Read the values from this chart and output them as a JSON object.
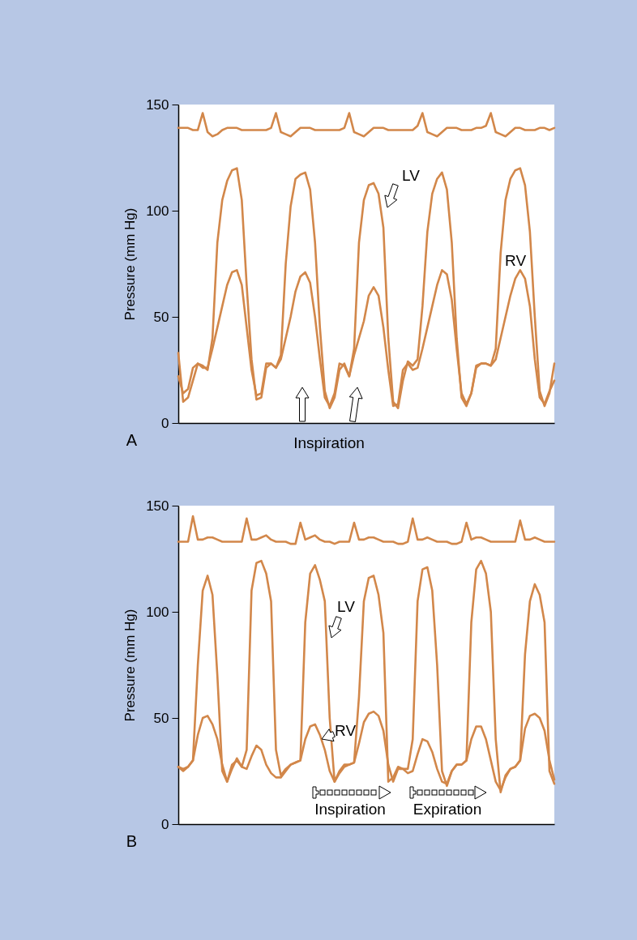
{
  "chart_data": [
    {
      "type": "line",
      "title": "A",
      "ylabel": "Pressure (mm Hg)",
      "ylim": [
        0,
        150
      ],
      "yticks": [
        0,
        50,
        100,
        150
      ],
      "tick_labels": "y",
      "categories": [
        null,
        null,
        null,
        null,
        null,
        null,
        null,
        null,
        null,
        null,
        null,
        null,
        null,
        null,
        null,
        null,
        null,
        null,
        null,
        null,
        null,
        null,
        null,
        null,
        null,
        null,
        null,
        null,
        null,
        null,
        null,
        null,
        null,
        null,
        null,
        null,
        null,
        null,
        null,
        null,
        null,
        null,
        null,
        null,
        null,
        null,
        null,
        null,
        null,
        null,
        null,
        null,
        null,
        null,
        null,
        null,
        null,
        null,
        null,
        null,
        null,
        null,
        null,
        null,
        null,
        null,
        null,
        null,
        null,
        null,
        null,
        null,
        null,
        null,
        null,
        null,
        null,
        null
      ],
      "series": [
        {
          "color": "#d2874a",
          "values": [
            139,
            139,
            139,
            138,
            138,
            146,
            137,
            135,
            136,
            138,
            139,
            139,
            139,
            138,
            138,
            138,
            138,
            138,
            138,
            139,
            146,
            137,
            136,
            135,
            137,
            139,
            139,
            139,
            138,
            138,
            138,
            138,
            138,
            138,
            139,
            146,
            137,
            136,
            135,
            137,
            139,
            139,
            139,
            138,
            138,
            138,
            138,
            138,
            138,
            140,
            146,
            137,
            136,
            135,
            137,
            139,
            139,
            139,
            138,
            138,
            138,
            139,
            139,
            140,
            146,
            137,
            136,
            135,
            137,
            139,
            139,
            138,
            138,
            138,
            139,
            139,
            138,
            139
          ]
        },
        {
          "name": "LV",
          "color": "#d2874a",
          "values": [
            33,
            10,
            12,
            20,
            28,
            27,
            25,
            40,
            85,
            105,
            114,
            119,
            120,
            105,
            65,
            30,
            11,
            12,
            26,
            28,
            26,
            32,
            75,
            102,
            115,
            117,
            118,
            110,
            85,
            45,
            15,
            7,
            12,
            25,
            28,
            22,
            35,
            85,
            105,
            112,
            113,
            108,
            92,
            40,
            10,
            7,
            20,
            29,
            27,
            30,
            55,
            90,
            108,
            115,
            118,
            110,
            85,
            40,
            12,
            8,
            14,
            26,
            28,
            28,
            27,
            35,
            80,
            105,
            115,
            119,
            120,
            112,
            90,
            50,
            15,
            8,
            14,
            28
          ]
        },
        {
          "name": "RV",
          "color": "#d2874a",
          "values": [
            22,
            14,
            16,
            26,
            28,
            26,
            26,
            35,
            45,
            55,
            65,
            71,
            72,
            65,
            45,
            25,
            13,
            14,
            28,
            28,
            26,
            30,
            40,
            50,
            62,
            69,
            71,
            66,
            50,
            30,
            12,
            8,
            14,
            28,
            27,
            22,
            32,
            40,
            48,
            60,
            64,
            60,
            45,
            25,
            8,
            9,
            25,
            28,
            25,
            26,
            35,
            45,
            55,
            65,
            72,
            70,
            58,
            35,
            14,
            9,
            14,
            27,
            28,
            28,
            27,
            30,
            40,
            50,
            60,
            68,
            72,
            68,
            55,
            30,
            12,
            9,
            15,
            20
          ]
        }
      ],
      "annotations": [
        "Inspiration"
      ]
    },
    {
      "type": "line",
      "title": "B",
      "ylabel": "Pressure (mm Hg)",
      "ylim": [
        0,
        150
      ],
      "yticks": [
        0,
        50,
        100,
        150
      ],
      "tick_labels": "y",
      "categories": [
        null,
        null,
        null,
        null,
        null,
        null,
        null,
        null,
        null,
        null,
        null,
        null,
        null,
        null,
        null,
        null,
        null,
        null,
        null,
        null,
        null,
        null,
        null,
        null,
        null,
        null,
        null,
        null,
        null,
        null,
        null,
        null,
        null,
        null,
        null,
        null,
        null,
        null,
        null,
        null,
        null,
        null,
        null,
        null,
        null,
        null,
        null,
        null,
        null,
        null,
        null,
        null,
        null,
        null,
        null,
        null,
        null,
        null,
        null,
        null,
        null,
        null,
        null,
        null,
        null,
        null,
        null,
        null,
        null,
        null,
        null,
        null,
        null,
        null,
        null,
        null,
        null,
        null
      ],
      "series": [
        {
          "color": "#d2874a",
          "values": [
            133,
            133,
            133,
            145,
            134,
            134,
            135,
            135,
            134,
            133,
            133,
            133,
            133,
            133,
            144,
            134,
            134,
            135,
            136,
            134,
            133,
            133,
            133,
            132,
            132,
            142,
            134,
            135,
            136,
            134,
            133,
            133,
            132,
            133,
            133,
            133,
            142,
            134,
            134,
            135,
            135,
            134,
            133,
            133,
            133,
            132,
            132,
            133,
            144,
            134,
            134,
            135,
            134,
            133,
            133,
            133,
            132,
            132,
            133,
            142,
            134,
            135,
            135,
            134,
            133,
            133,
            133,
            133,
            133,
            133,
            143,
            134,
            134,
            135,
            134,
            133,
            133,
            133
          ]
        },
        {
          "name": "LV",
          "color": "#d2874a",
          "values": [
            27,
            26,
            27,
            30,
            75,
            110,
            117,
            108,
            70,
            25,
            20,
            28,
            30,
            27,
            35,
            110,
            123,
            124,
            118,
            105,
            35,
            23,
            26,
            28,
            29,
            30,
            95,
            118,
            122,
            115,
            105,
            50,
            20,
            25,
            28,
            28,
            29,
            60,
            105,
            116,
            117,
            108,
            90,
            20,
            22,
            27,
            26,
            26,
            40,
            105,
            120,
            121,
            110,
            75,
            25,
            18,
            25,
            28,
            28,
            30,
            95,
            120,
            124,
            118,
            100,
            40,
            15,
            23,
            26,
            27,
            30,
            80,
            105,
            113,
            108,
            95,
            25,
            19
          ]
        },
        {
          "name": "RV",
          "color": "#d2874a",
          "values": [
            27,
            25,
            27,
            30,
            42,
            50,
            51,
            47,
            40,
            28,
            20,
            26,
            31,
            27,
            26,
            32,
            37,
            35,
            28,
            24,
            22,
            22,
            25,
            28,
            29,
            30,
            40,
            46,
            47,
            42,
            35,
            25,
            20,
            24,
            27,
            28,
            29,
            38,
            48,
            52,
            53,
            51,
            44,
            28,
            20,
            26,
            26,
            24,
            25,
            33,
            40,
            39,
            34,
            26,
            20,
            19,
            25,
            28,
            28,
            30,
            40,
            46,
            46,
            40,
            30,
            20,
            16,
            22,
            26,
            27,
            30,
            45,
            51,
            52,
            50,
            44,
            30,
            21
          ]
        }
      ],
      "annotations": [
        "Inspiration",
        "Expiration"
      ]
    }
  ]
}
